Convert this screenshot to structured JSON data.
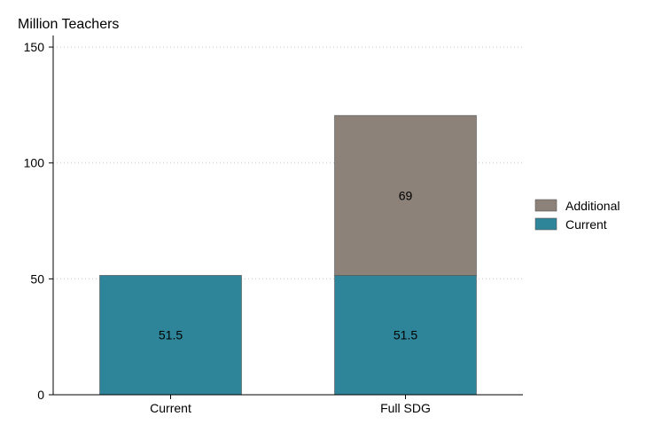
{
  "chart_data": {
    "type": "bar",
    "stacked": true,
    "title": "",
    "ylabel": "Million Teachers",
    "xlabel": "",
    "categories": [
      "Current",
      "Full SDG"
    ],
    "series": [
      {
        "name": "Current",
        "values": [
          51.5,
          51.5
        ],
        "color": "#2e8599",
        "data_labels": [
          "51.5",
          "51.5"
        ]
      },
      {
        "name": "Additional",
        "values": [
          0,
          69
        ],
        "color": "#8c8279",
        "data_labels": [
          "",
          "69"
        ]
      }
    ],
    "ylim": [
      0,
      155
    ],
    "yticks": [
      0,
      50,
      100,
      150
    ],
    "grid": true,
    "legend": {
      "placement": "right",
      "entries": [
        "Additional",
        "Current"
      ]
    }
  }
}
